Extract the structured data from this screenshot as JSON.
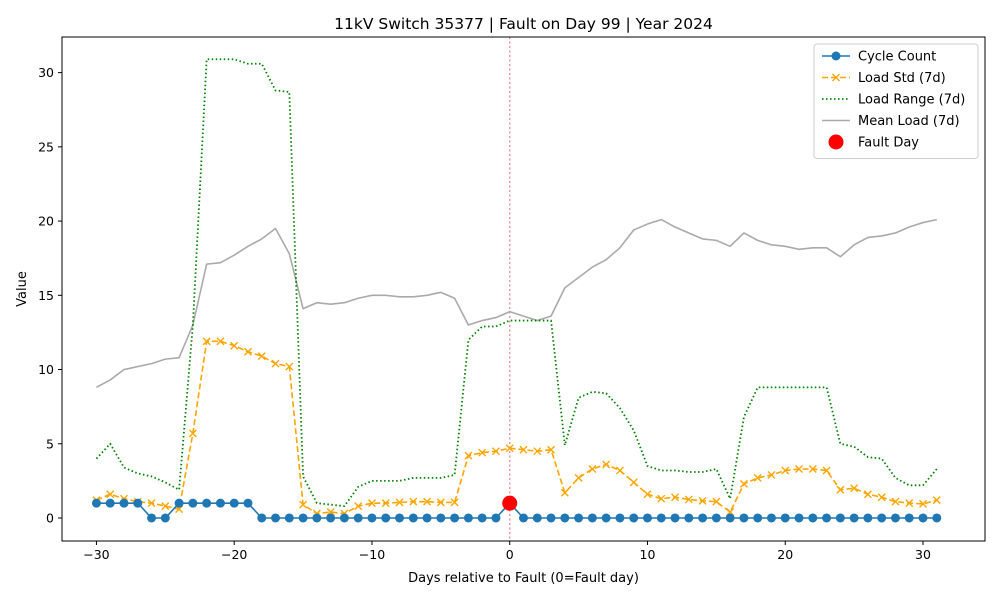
{
  "chart_data": {
    "type": "line",
    "title": "11kV Switch 35377 | Fault on Day 99 | Year 2024",
    "xlabel": "Days relative to Fault (0=Fault day)",
    "ylabel": "Value",
    "xlim": [
      -32.5,
      34.5
    ],
    "ylim": [
      -1.55,
      32.4
    ],
    "xticks": [
      -30,
      -20,
      -10,
      0,
      10,
      20,
      30
    ],
    "xtick_labels": [
      "−30",
      "−20",
      "−10",
      "0",
      "10",
      "20",
      "30"
    ],
    "yticks": [
      0,
      5,
      10,
      15,
      20,
      25,
      30
    ],
    "ytick_labels": [
      "0",
      "5",
      "10",
      "15",
      "20",
      "25",
      "30"
    ],
    "grid": false,
    "legend_position": "top-right",
    "fault_line_x": 0,
    "x": [
      -30,
      -29,
      -28,
      -27,
      -26,
      -25,
      -24,
      -23,
      -22,
      -21,
      -20,
      -19,
      -18,
      -17,
      -16,
      -15,
      -14,
      -13,
      -12,
      -11,
      -10,
      -9,
      -8,
      -7,
      -6,
      -5,
      -4,
      -3,
      -2,
      -1,
      0,
      1,
      2,
      3,
      4,
      5,
      6,
      7,
      8,
      9,
      10,
      11,
      12,
      13,
      14,
      15,
      16,
      17,
      18,
      19,
      20,
      21,
      22,
      23,
      24,
      25,
      26,
      27,
      28,
      29,
      30,
      31
    ],
    "series": [
      {
        "name": "Cycle Count",
        "color": "#1f77b4",
        "style": "solid",
        "marker": "circle",
        "values": [
          1,
          1,
          1,
          1,
          0,
          0,
          1,
          1,
          1,
          1,
          1,
          1,
          0,
          0,
          0,
          0,
          0,
          0,
          0,
          0,
          0,
          0,
          0,
          0,
          0,
          0,
          0,
          0,
          0,
          0,
          1,
          0,
          0,
          0,
          0,
          0,
          0,
          0,
          0,
          0,
          0,
          0,
          0,
          0,
          0,
          0,
          0,
          0,
          0,
          0,
          0,
          0,
          0,
          0,
          0,
          0,
          0,
          0,
          0,
          0,
          0,
          0
        ]
      },
      {
        "name": "Load Std (7d)",
        "color": "#ffa500",
        "style": "dashed",
        "marker": "x",
        "values": [
          1.2,
          1.6,
          1.3,
          1.1,
          1.0,
          0.8,
          0.6,
          5.7,
          11.9,
          11.9,
          11.6,
          11.2,
          10.9,
          10.4,
          10.2,
          0.9,
          0.3,
          0.4,
          0.3,
          0.8,
          1.0,
          1.0,
          1.05,
          1.1,
          1.1,
          1.05,
          1.05,
          4.2,
          4.4,
          4.5,
          4.7,
          4.6,
          4.5,
          4.6,
          1.7,
          2.7,
          3.3,
          3.6,
          3.2,
          2.4,
          1.6,
          1.3,
          1.4,
          1.25,
          1.15,
          1.1,
          0.4,
          2.3,
          2.7,
          2.9,
          3.2,
          3.3,
          3.3,
          3.2,
          1.9,
          2.0,
          1.6,
          1.4,
          1.1,
          1.0,
          0.95,
          1.2
        ]
      },
      {
        "name": "Load Range (7d)",
        "color": "#008000",
        "style": "dotted",
        "marker": "none",
        "values": [
          4.0,
          5.0,
          3.4,
          3.0,
          2.8,
          2.4,
          1.9,
          13.0,
          30.9,
          30.9,
          30.9,
          30.6,
          30.6,
          28.8,
          28.7,
          2.8,
          1.0,
          0.9,
          0.8,
          2.1,
          2.5,
          2.5,
          2.5,
          2.7,
          2.7,
          2.7,
          2.9,
          12.0,
          12.9,
          12.9,
          13.3,
          13.3,
          13.3,
          13.3,
          4.9,
          8.1,
          8.5,
          8.4,
          7.4,
          5.9,
          3.5,
          3.2,
          3.2,
          3.1,
          3.1,
          3.3,
          1.3,
          6.8,
          8.8,
          8.8,
          8.8,
          8.8,
          8.8,
          8.8,
          5.0,
          4.8,
          4.1,
          4.0,
          2.7,
          2.2,
          2.2,
          3.3
        ]
      },
      {
        "name": "Mean Load (7d)",
        "color": "#aaaaaa",
        "style": "solid",
        "marker": "none",
        "values": [
          8.8,
          9.3,
          10.0,
          10.2,
          10.4,
          10.7,
          10.8,
          13.0,
          17.1,
          17.2,
          17.7,
          18.3,
          18.8,
          19.5,
          17.8,
          14.1,
          14.5,
          14.4,
          14.5,
          14.8,
          15.0,
          15.0,
          14.9,
          14.9,
          15.0,
          15.2,
          14.8,
          13.0,
          13.3,
          13.5,
          13.9,
          13.6,
          13.3,
          13.6,
          15.5,
          16.2,
          16.9,
          17.4,
          18.2,
          19.4,
          19.8,
          20.1,
          19.6,
          19.2,
          18.8,
          18.7,
          18.3,
          19.2,
          18.7,
          18.4,
          18.3,
          18.1,
          18.2,
          18.2,
          17.6,
          18.4,
          18.9,
          19.0,
          19.2,
          19.6,
          19.9,
          20.1
        ]
      }
    ],
    "highlight_point": {
      "name": "Fault Day",
      "color": "#ff0000",
      "x": 0,
      "y": 1
    }
  }
}
